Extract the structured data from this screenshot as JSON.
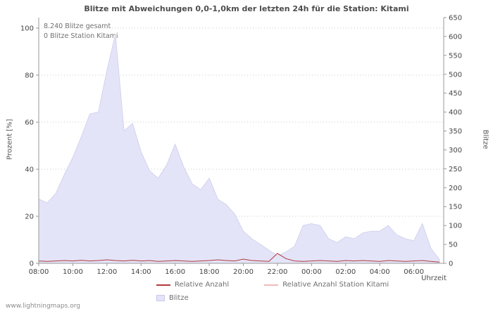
{
  "watermark": "www.lightningmaps.org",
  "legend": [
    {
      "label": "Relative Anzahl",
      "color": "#b03a3a",
      "swatch": "line"
    },
    {
      "label": "Relative Anzahl Station Kitami",
      "color": "#f2b9b9",
      "swatch": "line"
    },
    {
      "label": "Blitze",
      "color": "#e4e4f8",
      "swatch": "area"
    }
  ],
  "chart_data": {
    "type": "area",
    "title": "Blitze mit Abweichungen 0,0-1,0km der letzten 24h für die Station: Kitami",
    "annotations": {
      "total": "8.240 Blitze gesamt",
      "station": "0 Blitze Station Kitami"
    },
    "xlabel": "Uhrzeit",
    "ylabel_left": "Prozent  [%]",
    "ylabel_right": "Blitze",
    "ylim_left": [
      0,
      100
    ],
    "ylim_right": [
      0,
      650
    ],
    "left_ticks": [
      0,
      20,
      40,
      60,
      80,
      100
    ],
    "right_ticks": [
      0,
      50,
      100,
      150,
      200,
      250,
      300,
      350,
      400,
      450,
      500,
      550,
      600,
      650
    ],
    "x_ticks": [
      "08:00",
      "10:00",
      "12:00",
      "14:00",
      "16:00",
      "18:00",
      "20:00",
      "22:00",
      "00:00",
      "02:00",
      "04:00",
      "06:00"
    ],
    "grid": "dotted-horizontal",
    "legend_position": "bottom",
    "x": [
      "08:00",
      "08:30",
      "09:00",
      "09:30",
      "10:00",
      "10:30",
      "11:00",
      "11:30",
      "12:00",
      "12:30",
      "13:00",
      "13:30",
      "14:00",
      "14:30",
      "15:00",
      "15:30",
      "16:00",
      "16:30",
      "17:00",
      "17:30",
      "18:00",
      "18:30",
      "19:00",
      "19:30",
      "20:00",
      "20:30",
      "21:00",
      "21:30",
      "22:00",
      "22:30",
      "23:00",
      "23:30",
      "00:00",
      "00:30",
      "01:00",
      "01:30",
      "02:00",
      "02:30",
      "03:00",
      "03:30",
      "04:00",
      "04:30",
      "05:00",
      "05:30",
      "06:00",
      "06:30",
      "07:00",
      "07:30"
    ],
    "series": [
      {
        "name": "Blitze",
        "type": "area",
        "axis": "right",
        "color": "#e4e4f8",
        "stroke": "#d2d2f0",
        "values": [
          170,
          160,
          185,
          235,
          280,
          335,
          395,
          400,
          510,
          605,
          350,
          370,
          295,
          245,
          225,
          260,
          315,
          255,
          210,
          195,
          225,
          170,
          155,
          130,
          85,
          65,
          50,
          35,
          20,
          30,
          45,
          100,
          105,
          100,
          65,
          55,
          70,
          65,
          80,
          85,
          85,
          100,
          75,
          65,
          60,
          105,
          40,
          10
        ]
      },
      {
        "name": "Relative Anzahl",
        "type": "line",
        "axis": "left",
        "color": "#b03a3a",
        "values": [
          1.0,
          0.8,
          1.0,
          1.2,
          1.0,
          1.3,
          1.0,
          1.2,
          1.5,
          1.2,
          1.0,
          1.3,
          1.0,
          1.2,
          0.8,
          1.0,
          1.2,
          1.0,
          0.8,
          1.0,
          1.2,
          1.5,
          1.2,
          1.0,
          1.8,
          1.2,
          1.0,
          0.8,
          4.2,
          2.0,
          1.0,
          0.8,
          1.0,
          1.2,
          1.0,
          0.8,
          1.2,
          1.0,
          1.2,
          1.0,
          0.8,
          1.2,
          1.0,
          0.8,
          1.0,
          1.2,
          0.8,
          0.5
        ]
      },
      {
        "name": "Relative Anzahl Station Kitami",
        "type": "line",
        "axis": "left",
        "color": "#f2b9b9",
        "values": [
          0,
          0,
          0,
          0,
          0,
          0,
          0,
          0,
          0,
          0,
          0,
          0,
          0,
          0,
          0,
          0,
          0,
          0,
          0,
          0,
          0,
          0,
          0,
          0,
          0,
          0,
          0,
          0,
          0,
          0,
          0,
          0,
          0,
          0,
          0,
          0,
          0,
          0,
          0,
          0,
          0,
          0,
          0,
          0,
          0,
          0,
          0,
          0
        ]
      }
    ]
  }
}
